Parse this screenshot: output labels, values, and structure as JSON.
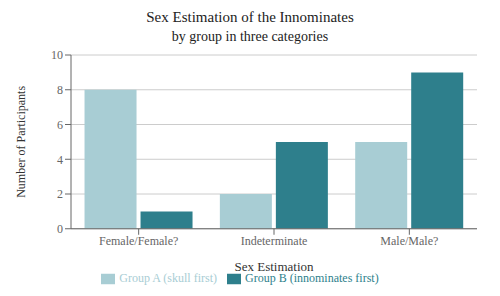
{
  "chart_data": {
    "type": "bar",
    "title": "Sex Estimation of the Innominates",
    "subtitle": "by group in three categories",
    "xlabel": "Sex Estimation",
    "ylabel": "Number of Participants",
    "categories": [
      "Female/Female?",
      "Indeterminate",
      "Male/Male?"
    ],
    "series": [
      {
        "name": "Group A (skull first)",
        "color": "#a8cdd4",
        "values": [
          8,
          2,
          5
        ]
      },
      {
        "name": "Group B (innominates first)",
        "color": "#2e7f8c",
        "values": [
          1,
          5,
          9
        ]
      }
    ],
    "ylim": [
      0,
      10
    ],
    "yticks": [
      0,
      2,
      4,
      6,
      8,
      10
    ],
    "grid": true,
    "legend": "bottom"
  }
}
